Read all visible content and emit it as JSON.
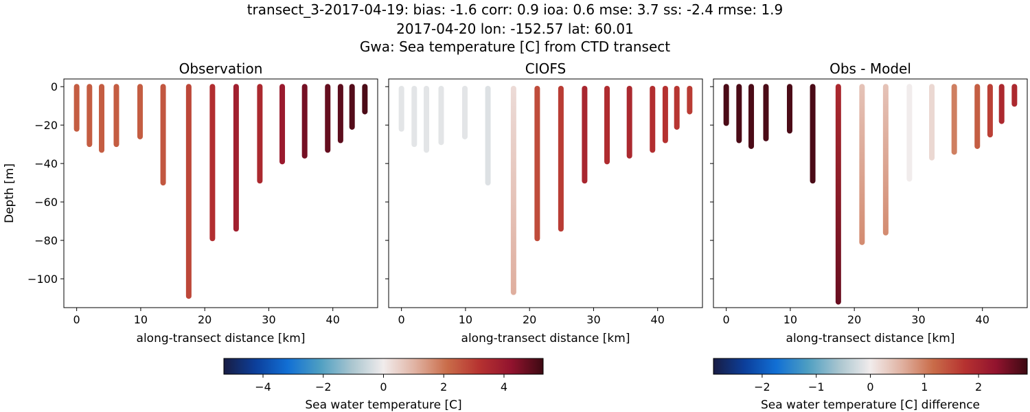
{
  "suptitle": {
    "line1": "transect_3-2017-04-19: bias: -1.6  corr: 0.9  ioa: 0.6  mse: 3.7  ss: -2.4  rmse: 1.9",
    "line2": "2017-04-20 lon: -152.57 lat: 60.01",
    "line3": "Gwa: Sea temperature [C] from CTD transect"
  },
  "chart_data": [
    {
      "type": "scatter",
      "title": "Observation",
      "xlabel": "along-transect distance [km]",
      "ylabel": "Depth [m]",
      "xlim": [
        -2,
        47
      ],
      "ylim": [
        -115,
        4
      ],
      "xticks": [
        0,
        10,
        20,
        30,
        40
      ],
      "yticks": [
        0,
        -20,
        -40,
        -60,
        -80,
        -100
      ],
      "colormap": "balance",
      "vmin": -5.3,
      "vmax": 5.3,
      "casts": [
        {
          "x": 0.0,
          "z_bottom": -22,
          "value": 2.4
        },
        {
          "x": 2.0,
          "z_bottom": -30,
          "value": 2.4
        },
        {
          "x": 3.9,
          "z_bottom": -33,
          "value": 2.4
        },
        {
          "x": 6.2,
          "z_bottom": -30,
          "value": 2.4
        },
        {
          "x": 9.9,
          "z_bottom": -26,
          "value": 2.4
        },
        {
          "x": 13.5,
          "z_bottom": -50,
          "value": 2.5
        },
        {
          "x": 17.5,
          "z_bottom": -109,
          "value": 2.8
        },
        {
          "x": 21.2,
          "z_bottom": -79,
          "value": 3.3
        },
        {
          "x": 24.9,
          "z_bottom": -74,
          "value": 3.8
        },
        {
          "x": 28.6,
          "z_bottom": -49,
          "value": 3.5
        },
        {
          "x": 32.1,
          "z_bottom": -39,
          "value": 4.0
        },
        {
          "x": 35.6,
          "z_bottom": -36,
          "value": 4.6
        },
        {
          "x": 39.2,
          "z_bottom": -33,
          "value": 4.8
        },
        {
          "x": 41.2,
          "z_bottom": -28,
          "value": 4.9
        },
        {
          "x": 43.0,
          "z_bottom": -21,
          "value": 5.0
        },
        {
          "x": 45.0,
          "z_bottom": -13,
          "value": 5.1
        }
      ]
    },
    {
      "type": "scatter",
      "title": "CIOFS",
      "xlabel": "along-transect distance [km]",
      "xlim": [
        -2,
        47
      ],
      "ylim": [
        -115,
        4
      ],
      "xticks": [
        0,
        10,
        20,
        30,
        40
      ],
      "colormap": "balance",
      "vmin": -5.3,
      "vmax": 5.3,
      "casts": [
        {
          "x": 0.0,
          "z_top": -1,
          "z_bottom": -22,
          "value": -0.2
        },
        {
          "x": 2.0,
          "z_top": -1,
          "z_bottom": -30,
          "value": -0.2
        },
        {
          "x": 3.9,
          "z_top": -1,
          "z_bottom": -33,
          "value": -0.2
        },
        {
          "x": 6.2,
          "z_top": -1,
          "z_bottom": -29,
          "value": -0.2
        },
        {
          "x": 9.9,
          "z_top": -1,
          "z_bottom": -26,
          "value": -0.2
        },
        {
          "x": 13.5,
          "z_top": -1,
          "z_bottom": -50,
          "value": -0.3
        },
        {
          "x": 17.5,
          "z_top": -1,
          "z_bottom": -107,
          "value_top": 0.3,
          "value_bottom": 1.1
        },
        {
          "x": 21.2,
          "z_top": -1,
          "z_bottom": -79,
          "value": 2.7
        },
        {
          "x": 24.9,
          "z_top": -1,
          "z_bottom": -74,
          "value": 3.0
        },
        {
          "x": 28.6,
          "z_top": -1,
          "z_bottom": -49,
          "value": 3.6
        },
        {
          "x": 32.1,
          "z_top": -1,
          "z_bottom": -39,
          "value": 3.4
        },
        {
          "x": 35.6,
          "z_top": -1,
          "z_bottom": -36,
          "value": 3.5
        },
        {
          "x": 39.2,
          "z_top": -1,
          "z_bottom": -33,
          "value": 3.3
        },
        {
          "x": 41.2,
          "z_top": -1,
          "z_bottom": -28,
          "value": 3.2
        },
        {
          "x": 43.0,
          "z_top": -1,
          "z_bottom": -21,
          "value": 3.1
        },
        {
          "x": 45.0,
          "z_top": -1,
          "z_bottom": -13,
          "value": 3.0
        }
      ]
    },
    {
      "type": "scatter",
      "title": "Obs - Model",
      "xlabel": "along-transect distance [km]",
      "xlim": [
        -2,
        47
      ],
      "ylim": [
        -115,
        4
      ],
      "xticks": [
        0,
        10,
        20,
        30,
        40
      ],
      "colormap": "balance",
      "vmin": -2.9,
      "vmax": 2.9,
      "casts": [
        {
          "x": 0.0,
          "z_bottom": -19,
          "value": 2.8
        },
        {
          "x": 2.0,
          "z_bottom": -28,
          "value": 2.8
        },
        {
          "x": 3.9,
          "z_bottom": -31,
          "value": 2.8
        },
        {
          "x": 6.2,
          "z_bottom": -27,
          "value": 2.8
        },
        {
          "x": 9.9,
          "z_bottom": -23,
          "value": 2.8
        },
        {
          "x": 13.5,
          "z_bottom": -49,
          "value": 2.8
        },
        {
          "x": 17.5,
          "z_bottom": -112,
          "value_top": 1.9,
          "value_bottom": 2.6
        },
        {
          "x": 21.2,
          "z_bottom": -81,
          "value_top": 0.4,
          "value_bottom": 0.9
        },
        {
          "x": 24.9,
          "z_bottom": -76,
          "value_top": 0.4,
          "value_bottom": 0.9
        },
        {
          "x": 28.6,
          "z_bottom": -48,
          "value": 0.0
        },
        {
          "x": 32.1,
          "z_bottom": -37,
          "value": 0.2
        },
        {
          "x": 35.6,
          "z_bottom": -34,
          "value": 1.0
        },
        {
          "x": 39.2,
          "z_bottom": -31,
          "value": 1.3
        },
        {
          "x": 41.2,
          "z_bottom": -25,
          "value": 1.6
        },
        {
          "x": 43.0,
          "z_bottom": -18,
          "value": 1.9
        },
        {
          "x": 45.0,
          "z_bottom": -9,
          "value": 1.9
        }
      ]
    }
  ],
  "colorbars": [
    {
      "label": "Sea water temperature [C]",
      "vmin": -5.3,
      "vmax": 5.3,
      "ticks": [
        -4,
        -2,
        0,
        2,
        4
      ],
      "tick_labels": [
        "−4",
        "−2",
        "0",
        "2",
        "4"
      ]
    },
    {
      "label": "Sea water temperature [C] difference",
      "vmin": -2.9,
      "vmax": 2.9,
      "ticks": [
        -2,
        -1,
        0,
        1,
        2
      ],
      "tick_labels": [
        "−2",
        "−1",
        "0",
        "1",
        "2"
      ]
    }
  ],
  "ytick_labels": [
    "0",
    "−20",
    "−40",
    "−60",
    "−80",
    "−100"
  ],
  "colors": {
    "balance_stops": [
      "#181c43",
      "#0c3f9b",
      "#116fd4",
      "#4d9ec2",
      "#a9c5cf",
      "#f1ecec",
      "#e0b1a1",
      "#c96c49",
      "#b63230",
      "#92132e",
      "#3c0912"
    ]
  }
}
